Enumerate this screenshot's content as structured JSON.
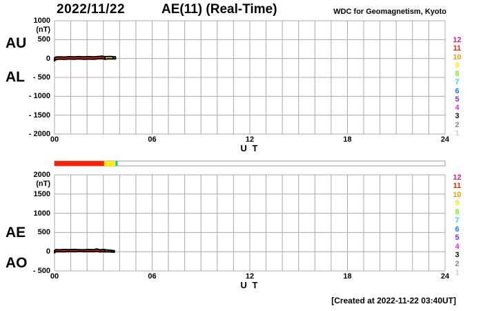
{
  "header": {
    "date": "2022/11/22",
    "title": "AE(11) (Real-Time)",
    "source": "WDC for Geomagnetism, Kyoto"
  },
  "footer": {
    "created": "[Created at 2022-11-22 03:40UT]"
  },
  "legend": {
    "description": "number of stations color scale",
    "values": [
      "12",
      "11",
      "10",
      "9",
      "8",
      "7",
      "6",
      "5",
      "4",
      "3",
      "2",
      "1"
    ],
    "colors": [
      "#ee2266",
      "#ff2200",
      "#ff9900",
      "#ffee00",
      "#88ee22",
      "#22dddd",
      "#2277ff",
      "#6633ee",
      "#ee22ee",
      "#111111",
      "#888888",
      "#cccccc"
    ]
  },
  "status_bar": {
    "range_hours": [
      0,
      24
    ],
    "segments": [
      {
        "from": 0,
        "to": 3.05,
        "color": "#ff2200",
        "stations": 11
      },
      {
        "from": 3.05,
        "to": 3.75,
        "color": "#ffee00",
        "stations": 9
      },
      {
        "from": 3.75,
        "to": 3.88,
        "color": "#00ccaa",
        "stations": 7
      }
    ]
  },
  "chart_data": [
    {
      "type": "area",
      "panel": "upper",
      "side_labels": [
        "AU",
        "AL"
      ],
      "unit": "(nT)",
      "ylim": [
        -2000,
        1000
      ],
      "ytick_step": 500,
      "ytick_values": [
        1000,
        500,
        0,
        -500,
        -1000,
        -1500,
        -2000
      ],
      "ytick_labels": [
        "1000",
        "500",
        "0",
        "- 500",
        "- 1000",
        "- 1500",
        "- 2000"
      ],
      "xlim": [
        0,
        24
      ],
      "xticks": [
        0,
        6,
        12,
        18,
        24
      ],
      "xtick_labels": [
        "00",
        "06",
        "12",
        "18",
        "24"
      ],
      "xlabel": "U T",
      "grid": true,
      "grid_hour_step": 1,
      "bands": [
        {
          "stations": 11,
          "color": "#ff2200",
          "x": [
            0,
            0.08,
            0.3,
            0.6,
            0.9,
            1.2,
            1.5,
            1.8,
            2.1,
            2.4,
            2.7,
            2.9,
            3.1
          ],
          "upper": [
            15,
            40,
            45,
            40,
            48,
            44,
            50,
            46,
            50,
            45,
            55,
            62,
            48
          ],
          "lower": [
            -65,
            -28,
            -15,
            -22,
            -14,
            -20,
            -12,
            -18,
            -15,
            -20,
            -8,
            -5,
            -18
          ]
        },
        {
          "stations": 9,
          "color": "#ffee00",
          "x": [
            3.1,
            3.3,
            3.5,
            3.6
          ],
          "upper": [
            48,
            54,
            52,
            48
          ],
          "lower": [
            -18,
            -8,
            -10,
            -12
          ]
        },
        {
          "stations": 7,
          "color": "#22dddd",
          "x": [
            3.6,
            3.75
          ],
          "upper": [
            48,
            44
          ],
          "lower": [
            -12,
            -12
          ]
        }
      ]
    },
    {
      "type": "area",
      "panel": "lower",
      "side_labels": [
        "AE",
        "AO"
      ],
      "unit": "(nT)",
      "ylim": [
        -500,
        2000
      ],
      "ytick_step": 500,
      "ytick_values": [
        2000,
        1500,
        1000,
        500,
        0,
        -500
      ],
      "ytick_labels": [
        "2000",
        "1500",
        "1000",
        "500",
        "0",
        "- 500"
      ],
      "xlim": [
        0,
        24
      ],
      "xticks": [
        0,
        6,
        12,
        18,
        24
      ],
      "xtick_labels": [
        "00",
        "06",
        "12",
        "18",
        "24"
      ],
      "xlabel": "U T",
      "grid": true,
      "grid_hour_step": 1,
      "bands": [
        {
          "stations": 11,
          "color": "#ff2200",
          "x": [
            0,
            0.08,
            0.3,
            0.6,
            0.9,
            1.2,
            1.5,
            1.8,
            2.1,
            2.4,
            2.6,
            2.8,
            3.0,
            3.1
          ],
          "upper": [
            25,
            55,
            50,
            58,
            52,
            60,
            54,
            50,
            58,
            52,
            72,
            48,
            60,
            52
          ],
          "lower": [
            -30,
            -2,
            2,
            -4,
            4,
            0,
            6,
            -2,
            4,
            -2,
            8,
            -6,
            2,
            -4
          ]
        },
        {
          "stations": 9,
          "color": "#ffee00",
          "x": [
            3.1,
            3.3,
            3.5
          ],
          "upper": [
            52,
            42,
            36
          ],
          "lower": [
            -4,
            -2,
            -8
          ]
        },
        {
          "stations": 8,
          "color": "#88dd00",
          "x": [
            3.5,
            3.68
          ],
          "upper": [
            36,
            26
          ],
          "lower": [
            -8,
            -12
          ]
        }
      ]
    }
  ]
}
